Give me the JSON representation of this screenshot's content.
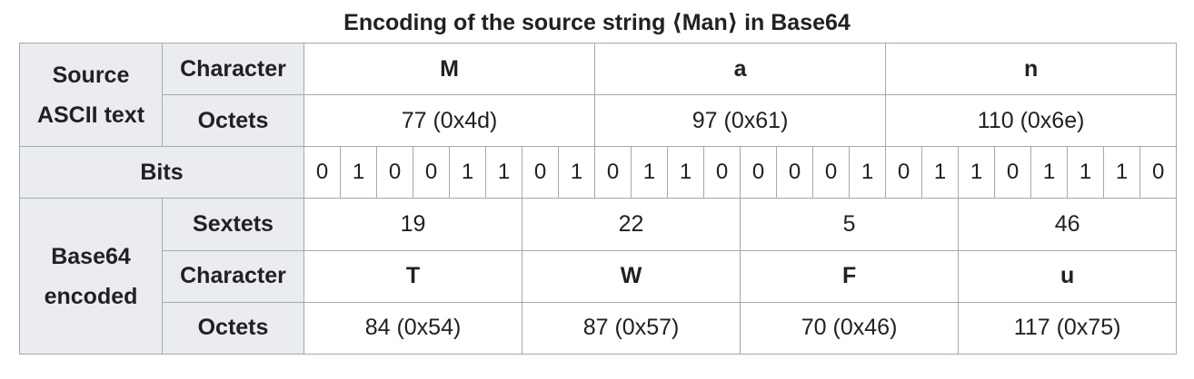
{
  "caption": "Encoding of the source string ⟨Man⟩ in Base64",
  "source": {
    "group_label": "Source ASCII text",
    "character_label": "Character",
    "octets_label": "Octets",
    "characters": [
      "M",
      "a",
      "n"
    ],
    "octets": [
      "77 (0x4d)",
      "97 (0x61)",
      "110 (0x6e)"
    ]
  },
  "bits": {
    "label": "Bits",
    "values": [
      "0",
      "1",
      "0",
      "0",
      "1",
      "1",
      "0",
      "1",
      "0",
      "1",
      "1",
      "0",
      "0",
      "0",
      "0",
      "1",
      "0",
      "1",
      "1",
      "0",
      "1",
      "1",
      "1",
      "0"
    ]
  },
  "encoded": {
    "group_label": "Base64 encoded",
    "sextets_label": "Sextets",
    "character_label": "Character",
    "octets_label": "Octets",
    "sextets": [
      "19",
      "22",
      "5",
      "46"
    ],
    "characters": [
      "T",
      "W",
      "F",
      "u"
    ],
    "octets": [
      "84 (0x54)",
      "87 (0x57)",
      "70 (0x46)",
      "117 (0x75)"
    ]
  }
}
